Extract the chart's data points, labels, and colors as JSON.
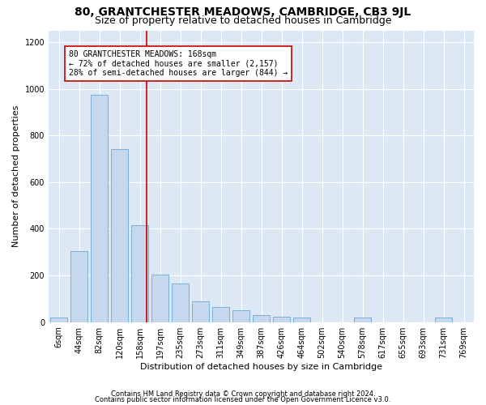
{
  "title": "80, GRANTCHESTER MEADOWS, CAMBRIDGE, CB3 9JL",
  "subtitle": "Size of property relative to detached houses in Cambridge",
  "xlabel": "Distribution of detached houses by size in Cambridge",
  "ylabel": "Number of detached properties",
  "categories": [
    "6sqm",
    "44sqm",
    "82sqm",
    "120sqm",
    "158sqm",
    "197sqm",
    "235sqm",
    "273sqm",
    "311sqm",
    "349sqm",
    "387sqm",
    "426sqm",
    "464sqm",
    "502sqm",
    "540sqm",
    "578sqm",
    "617sqm",
    "655sqm",
    "693sqm",
    "731sqm",
    "769sqm"
  ],
  "values": [
    20,
    305,
    975,
    740,
    415,
    205,
    165,
    90,
    65,
    50,
    30,
    25,
    20,
    0,
    0,
    20,
    0,
    0,
    0,
    20,
    0
  ],
  "bar_color": "#c5d8ed",
  "bar_edge_color": "#7aafd4",
  "property_line_color": "#cc0000",
  "annotation_text": "80 GRANTCHESTER MEADOWS: 168sqm\n← 72% of detached houses are smaller (2,157)\n28% of semi-detached houses are larger (844) →",
  "annotation_box_facecolor": "#ffffff",
  "annotation_box_edgecolor": "#cc0000",
  "ylim": [
    0,
    1250
  ],
  "yticks": [
    0,
    200,
    400,
    600,
    800,
    1000,
    1200
  ],
  "plot_background_color": "#dce9f5",
  "grid_color": "#ffffff",
  "footer_line1": "Contains HM Land Registry data © Crown copyright and database right 2024.",
  "footer_line2": "Contains public sector information licensed under the Open Government Licence v3.0.",
  "title_fontsize": 10,
  "subtitle_fontsize": 9,
  "axis_label_fontsize": 8,
  "tick_fontsize": 7,
  "annotation_fontsize": 7,
  "footer_fontsize": 6
}
